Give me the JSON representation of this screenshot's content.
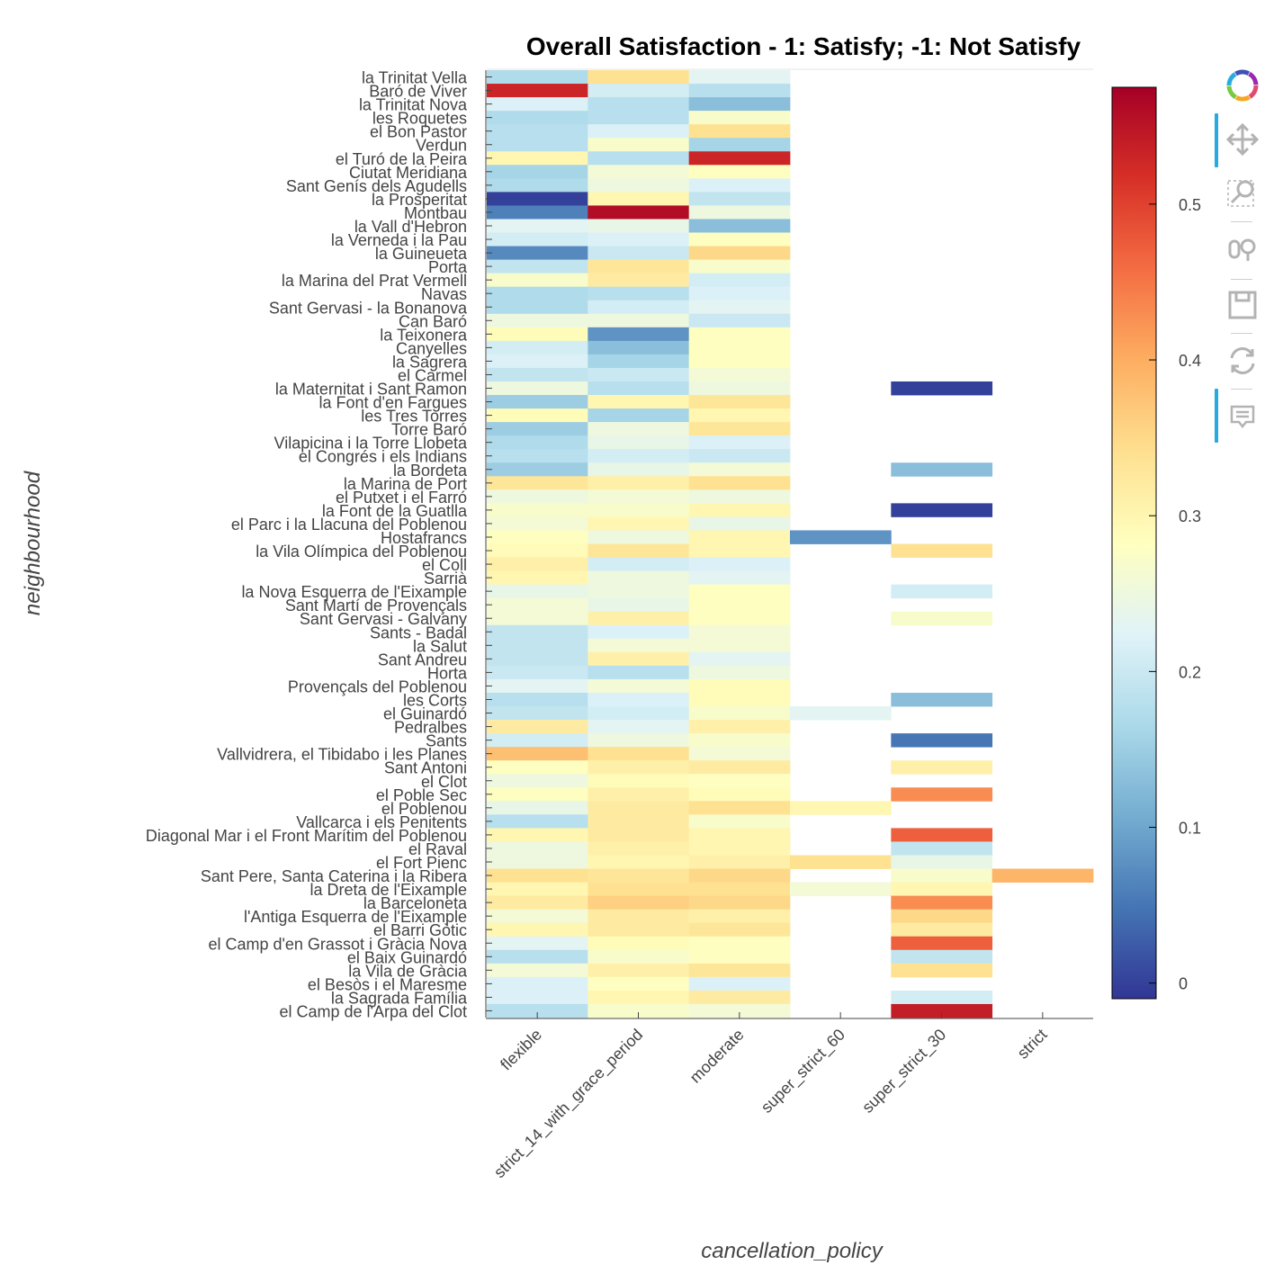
{
  "chart_data": {
    "type": "heatmap",
    "title": "Overall Satisfaction - 1: Satisfy; -1: Not Satisfy",
    "xlabel": "cancellation_policy",
    "ylabel": "neighbourhood",
    "columns": [
      "flexible",
      "strict_14_with_grace_period",
      "moderate",
      "super_strict_60",
      "super_strict_30",
      "strict"
    ],
    "rows": [
      "la Trinitat Vella",
      "Baró de Viver",
      "la Trinitat Nova",
      "les Roquetes",
      "el Bon Pastor",
      "Verdun",
      "el Turó de la Peira",
      "Ciutat Meridiana",
      "Sant Genís dels Agudells",
      "la Prosperitat",
      "Montbau",
      "la Vall d'Hebron",
      "la Verneda i la Pau",
      "la Guineueta",
      "Porta",
      "la Marina del Prat Vermell",
      "Navas",
      "Sant Gervasi - la Bonanova",
      "Can Baró",
      "la Teixonera",
      "Canyelles",
      "la Sagrera",
      "el Carmel",
      "la Maternitat i Sant Ramon",
      "la Font d'en Fargues",
      "les Tres Torres",
      "Torre Baró",
      "Vilapicina i la Torre Llobeta",
      "el Congrés i els Indians",
      "la Bordeta",
      "la Marina de Port",
      "el Putxet i el Farró",
      "la Font de la Guatlla",
      "el Parc i la Llacuna del Poblenou",
      "Hostafrancs",
      "la Vila Olímpica del Poblenou",
      "el Coll",
      "Sarrià",
      "la Nova Esquerra de l'Eixample",
      "Sant Martí de Provençals",
      "Sant Gervasi - Galvany",
      "Sants - Badal",
      "la Salut",
      "Sant Andreu",
      "Horta",
      "Provençals del Poblenou",
      "les Corts",
      "el Guinardó",
      "Pedralbes",
      "Sants",
      "Vallvidrera, el Tibidabo i les Planes",
      "Sant Antoni",
      "el Clot",
      "el Poble Sec",
      "el Poblenou",
      "Vallcarca i els Penitents",
      "Diagonal Mar i el Front Marítim del Poblenou",
      "el Raval",
      "el Fort Pienc",
      "Sant Pere, Santa Caterina i la Ribera",
      "la Dreta de l'Eixample",
      "la Barceloneta",
      "l'Antiga Esquerra de l'Eixample",
      "el Barri Gòtic",
      "el Camp d'en Grassot i Gràcia Nova",
      "el Baix Guinardó",
      "la Vila de Gràcia",
      "el Besòs i el Maresme",
      "la Sagrada Família",
      "el Camp de l'Arpa del Clot"
    ],
    "values": [
      [
        0.17,
        0.34,
        0.23,
        null,
        null,
        null
      ],
      [
        0.53,
        0.21,
        0.18,
        null,
        null,
        null
      ],
      [
        0.22,
        0.18,
        0.13,
        null,
        null,
        null
      ],
      [
        0.17,
        0.18,
        0.27,
        null,
        null,
        null
      ],
      [
        0.18,
        0.22,
        0.34,
        null,
        null,
        null
      ],
      [
        0.18,
        0.27,
        0.16,
        null,
        null,
        null
      ],
      [
        0.3,
        0.18,
        0.53,
        null,
        null,
        null
      ],
      [
        0.16,
        0.26,
        0.28,
        null,
        null,
        null
      ],
      [
        0.17,
        0.25,
        0.22,
        null,
        null,
        null
      ],
      [
        0.0,
        0.3,
        0.19,
        null,
        null,
        null
      ],
      [
        0.06,
        0.56,
        0.25,
        null,
        null,
        null
      ],
      [
        0.23,
        0.24,
        0.13,
        null,
        null,
        null
      ],
      [
        0.21,
        0.22,
        0.28,
        null,
        null,
        null
      ],
      [
        0.07,
        0.2,
        0.35,
        null,
        null,
        null
      ],
      [
        0.19,
        0.33,
        0.27,
        null,
        null,
        null
      ],
      [
        0.27,
        0.32,
        0.21,
        null,
        null,
        null
      ],
      [
        0.17,
        0.18,
        0.22,
        null,
        null,
        null
      ],
      [
        0.17,
        0.21,
        0.23,
        null,
        null,
        null
      ],
      [
        0.25,
        0.25,
        0.2,
        null,
        null,
        null
      ],
      [
        0.29,
        0.08,
        0.28,
        null,
        null,
        null
      ],
      [
        0.21,
        0.13,
        0.28,
        null,
        null,
        null
      ],
      [
        0.22,
        0.16,
        0.28,
        null,
        null,
        null
      ],
      [
        0.19,
        0.2,
        0.26,
        null,
        null,
        null
      ],
      [
        0.25,
        0.18,
        0.25,
        null,
        0.0,
        null
      ],
      [
        0.15,
        0.3,
        0.33,
        null,
        null,
        null
      ],
      [
        0.29,
        0.16,
        0.3,
        null,
        null,
        null
      ],
      [
        0.15,
        0.25,
        0.33,
        null,
        null,
        null
      ],
      [
        0.17,
        0.24,
        0.22,
        null,
        null,
        null
      ],
      [
        0.18,
        0.21,
        0.2,
        null,
        null,
        null
      ],
      [
        0.15,
        0.24,
        0.26,
        null,
        0.13,
        null
      ],
      [
        0.33,
        0.31,
        0.34,
        null,
        null,
        null
      ],
      [
        0.25,
        0.26,
        0.25,
        null,
        null,
        null
      ],
      [
        0.27,
        0.27,
        0.3,
        null,
        0.0,
        null
      ],
      [
        0.26,
        0.3,
        0.24,
        null,
        null,
        null
      ],
      [
        0.28,
        0.25,
        0.3,
        0.08,
        null,
        null
      ],
      [
        0.29,
        0.33,
        0.3,
        null,
        0.34,
        null
      ],
      [
        0.31,
        0.21,
        0.22,
        null,
        null,
        null
      ],
      [
        0.3,
        0.25,
        0.23,
        null,
        null,
        null
      ],
      [
        0.24,
        0.25,
        0.28,
        null,
        0.21,
        null
      ],
      [
        0.26,
        0.24,
        0.28,
        null,
        null,
        null
      ],
      [
        0.26,
        0.31,
        0.28,
        null,
        0.27,
        null
      ],
      [
        0.19,
        0.22,
        0.26,
        null,
        null,
        null
      ],
      [
        0.19,
        0.26,
        0.26,
        null,
        null,
        null
      ],
      [
        0.19,
        0.31,
        0.23,
        null,
        null,
        null
      ],
      [
        0.2,
        0.18,
        0.25,
        null,
        null,
        null
      ],
      [
        0.23,
        0.26,
        0.29,
        null,
        null,
        null
      ],
      [
        0.18,
        0.22,
        0.29,
        null,
        0.13,
        null
      ],
      [
        0.19,
        0.21,
        0.27,
        0.23,
        null,
        null
      ],
      [
        0.32,
        0.23,
        0.31,
        null,
        null,
        null
      ],
      [
        0.21,
        0.25,
        0.27,
        null,
        0.05,
        null
      ],
      [
        0.38,
        0.34,
        0.26,
        null,
        null,
        null
      ],
      [
        0.28,
        0.31,
        0.32,
        null,
        0.31,
        null
      ],
      [
        0.25,
        0.29,
        0.28,
        null,
        null,
        null
      ],
      [
        0.28,
        0.31,
        0.29,
        null,
        0.43,
        null
      ],
      [
        0.24,
        0.32,
        0.34,
        0.3,
        null,
        null
      ],
      [
        0.18,
        0.32,
        0.27,
        null,
        null,
        null
      ],
      [
        0.3,
        0.32,
        0.3,
        null,
        0.47,
        null
      ],
      [
        0.25,
        0.31,
        0.3,
        null,
        0.19,
        null
      ],
      [
        0.25,
        0.3,
        0.31,
        0.34,
        0.24,
        null
      ],
      [
        0.34,
        0.33,
        0.35,
        null,
        0.27,
        0.39
      ],
      [
        0.3,
        0.34,
        0.34,
        0.26,
        0.3,
        null
      ],
      [
        0.32,
        0.36,
        0.35,
        null,
        0.43,
        null
      ],
      [
        0.26,
        0.32,
        0.31,
        null,
        0.35,
        null
      ],
      [
        0.3,
        0.32,
        0.33,
        null,
        0.32,
        null
      ],
      [
        0.23,
        0.29,
        0.28,
        null,
        0.47,
        null
      ],
      [
        0.18,
        0.27,
        0.28,
        null,
        0.19,
        null
      ],
      [
        0.26,
        0.31,
        0.33,
        null,
        0.34,
        null
      ],
      [
        0.22,
        0.28,
        0.22,
        null,
        null,
        null
      ],
      [
        0.22,
        0.3,
        0.32,
        null,
        0.21,
        null
      ],
      [
        0.18,
        0.27,
        0.26,
        null,
        0.54,
        null
      ]
    ],
    "color_range": [
      -0.01,
      0.575
    ],
    "colorbar_ticks": [
      0,
      0.1,
      0.2,
      0.3,
      0.4,
      0.5
    ],
    "colormap": [
      "#313695",
      "#4575b4",
      "#74add1",
      "#abd9e9",
      "#e0f3f8",
      "#ffffbf",
      "#fee090",
      "#fdae61",
      "#f46d43",
      "#d73027",
      "#a50026"
    ],
    "colors": {
      "grid": "#e5e5e5",
      "axis": "#444444",
      "text": "#444444",
      "title": "#000000"
    }
  },
  "toolbar": {
    "tools": [
      "bokeh-logo-icon",
      "pan-icon",
      "box-zoom-icon",
      "wheel-zoom-icon",
      "save-icon",
      "reset-icon",
      "hover-icon"
    ]
  }
}
